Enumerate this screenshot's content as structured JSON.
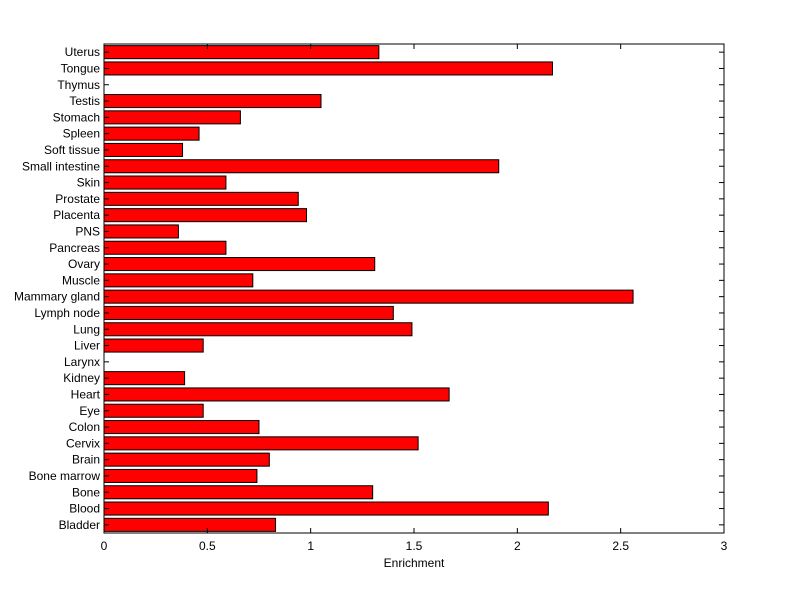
{
  "chart_data": {
    "type": "bar",
    "orientation": "horizontal",
    "categories": [
      "Uterus",
      "Tongue",
      "Thymus",
      "Testis",
      "Stomach",
      "Spleen",
      "Soft tissue",
      "Small intestine",
      "Skin",
      "Prostate",
      "Placenta",
      "PNS",
      "Pancreas",
      "Ovary",
      "Muscle",
      "Mammary gland",
      "Lymph node",
      "Lung",
      "Liver",
      "Larynx",
      "Kidney",
      "Heart",
      "Eye",
      "Colon",
      "Cervix",
      "Brain",
      "Bone marrow",
      "Bone",
      "Blood",
      "Bladder"
    ],
    "values": [
      1.33,
      2.17,
      0,
      1.05,
      0.66,
      0.46,
      0.38,
      1.91,
      0.59,
      0.94,
      0.98,
      0.36,
      0.59,
      1.31,
      0.72,
      2.56,
      1.4,
      1.49,
      0.48,
      0,
      0.39,
      1.67,
      0.48,
      0.75,
      1.52,
      0.8,
      0.74,
      1.3,
      2.15,
      0.83
    ],
    "title": "",
    "xlabel": "Enrichment",
    "ylabel": "",
    "xlim": [
      0,
      3
    ],
    "xticks": [
      "0",
      "0.5",
      "1",
      "1.5",
      "2",
      "2.5",
      "3"
    ],
    "bar_color": "#ff0000",
    "edge_color": "#000000",
    "grid": false,
    "legend": "none"
  }
}
